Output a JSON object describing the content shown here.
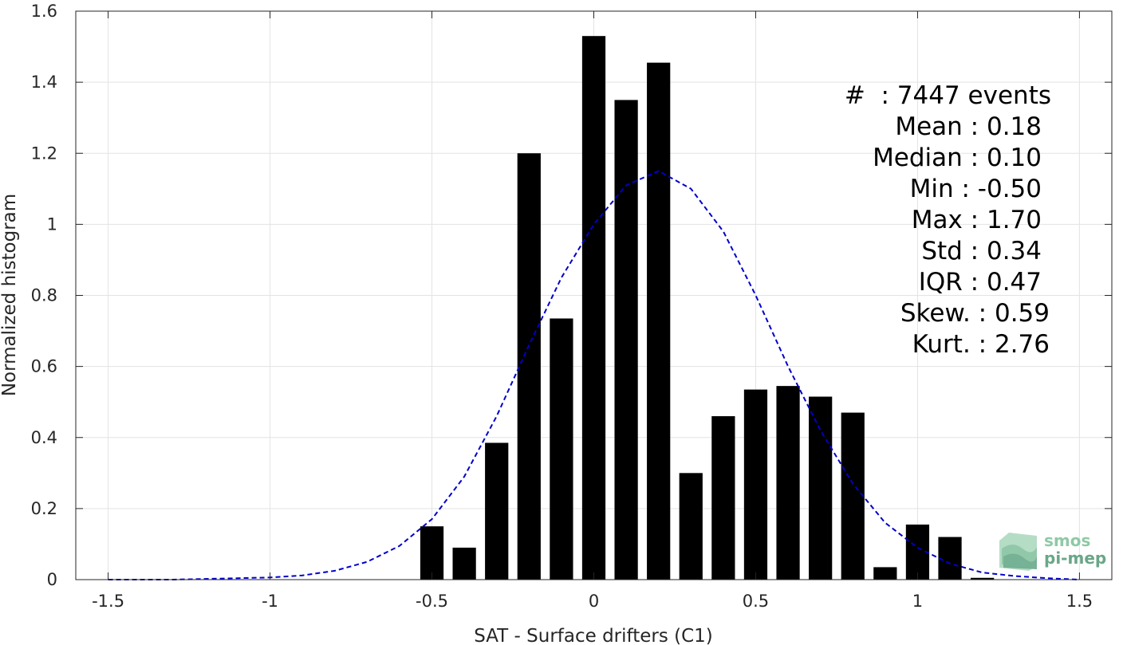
{
  "chart_data": {
    "type": "bar",
    "xlabel": "SAT - Surface drifters (C1)",
    "ylabel": "Normalized histogram",
    "xlim": [
      -1.6,
      1.6
    ],
    "ylim": [
      0,
      1.6
    ],
    "xticks": [
      -1.5,
      -1,
      -0.5,
      0,
      0.5,
      1,
      1.5
    ],
    "xtick_labels": [
      "-1.5",
      "-1",
      "-0.5",
      "0",
      "0.5",
      "1",
      "1.5"
    ],
    "yticks": [
      0,
      0.2,
      0.4,
      0.6,
      0.8,
      1,
      1.2,
      1.4,
      1.6
    ],
    "ytick_labels": [
      "0",
      "0.2",
      "0.4",
      "0.6",
      "0.8",
      "1",
      "1.2",
      "1.4",
      "1.6"
    ],
    "grid": true,
    "bar_color": "#000000",
    "curve_color": "#0000cc",
    "bin_width": 0.1,
    "bars": {
      "x": [
        -0.5,
        -0.4,
        -0.3,
        -0.2,
        -0.1,
        0.0,
        0.1,
        0.2,
        0.3,
        0.4,
        0.5,
        0.6,
        0.7,
        0.8,
        0.9,
        1.0,
        1.1,
        1.2
      ],
      "values": [
        0.15,
        0.09,
        0.385,
        1.2,
        0.735,
        1.53,
        1.35,
        1.455,
        0.3,
        0.46,
        0.535,
        0.545,
        0.515,
        0.47,
        0.035,
        0.155,
        0.12,
        0.005
      ]
    },
    "fit_curve": {
      "name": "",
      "style": "dashed",
      "x": [
        -1.5,
        -1.4,
        -1.3,
        -1.2,
        -1.1,
        -1.0,
        -0.9,
        -0.8,
        -0.7,
        -0.6,
        -0.5,
        -0.4,
        -0.3,
        -0.2,
        -0.1,
        0.0,
        0.1,
        0.2,
        0.3,
        0.4,
        0.5,
        0.6,
        0.7,
        0.8,
        0.9,
        1.0,
        1.1,
        1.2,
        1.3,
        1.4,
        1.5
      ],
      "y": [
        0.0,
        0.0,
        0.0,
        0.002,
        0.004,
        0.006,
        0.012,
        0.025,
        0.05,
        0.095,
        0.17,
        0.29,
        0.46,
        0.66,
        0.85,
        1.0,
        1.11,
        1.15,
        1.1,
        0.98,
        0.8,
        0.6,
        0.42,
        0.27,
        0.16,
        0.09,
        0.045,
        0.02,
        0.01,
        0.004,
        0.0
      ]
    }
  },
  "stats": {
    "events": "#  : 7447 events",
    "mean": "Mean : 0.18",
    "median": "Median : 0.10",
    "min": "Min : -0.50",
    "max": "Max : 1.70",
    "std": "Std : 0.34",
    "iqr": "IQR : 0.47",
    "skew": "Skew. : 0.59",
    "kurt": "Kurt. : 2.76"
  },
  "logo": {
    "line1": "smos",
    "line2": "pi-mep",
    "color_line1": "#8fc9a6",
    "color_line2": "#6aa688"
  }
}
